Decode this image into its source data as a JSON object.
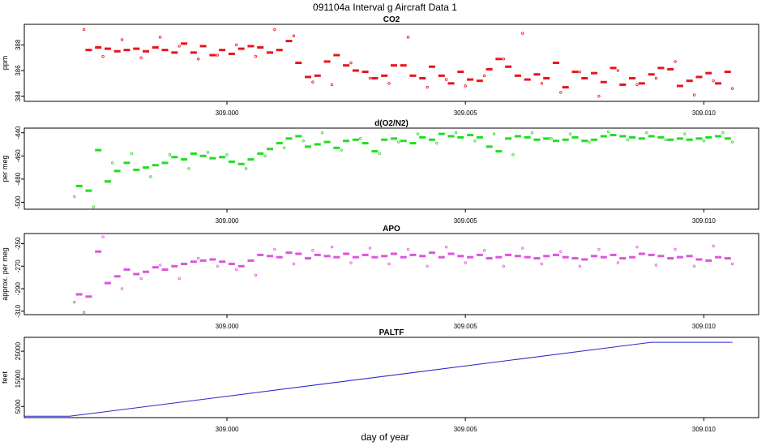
{
  "figure": {
    "title": "091104a   Interval g Aircraft Data 1",
    "xlabel": "day of year",
    "xticks": [
      309.0,
      309.005,
      309.01
    ],
    "xtick_labels": [
      "309.000",
      "309.005",
      "309.010"
    ],
    "xlim": [
      308.99575,
      309.01115
    ]
  },
  "chart_data": [
    {
      "type": "scatter",
      "title": "CO2",
      "ylabel": "ppm",
      "ylim": [
        383.6,
        389.6
      ],
      "yticks": [
        384,
        386,
        388
      ],
      "ytick_labels": [
        "384",
        "386",
        "388"
      ],
      "color": "#e8141c",
      "series": [
        {
          "name": "",
          "marker": "segment",
          "x": [
            308.9971,
            308.9973,
            308.9975,
            308.9977,
            308.9979,
            308.9981,
            308.9983,
            308.9985,
            308.9987,
            308.9989,
            308.9991,
            308.9993,
            308.9995,
            308.9997,
            308.9999,
            309.0001,
            309.0003,
            309.0005,
            309.0007,
            309.0009,
            309.0011,
            309.0013,
            309.0015,
            309.0017,
            309.0019,
            309.0021,
            309.0023,
            309.0025,
            309.0027,
            309.0029,
            309.0031,
            309.0033,
            309.0035,
            309.0037,
            309.0039,
            309.0041,
            309.0043,
            309.0045,
            309.0047,
            309.0049,
            309.0051,
            309.0053,
            309.0055,
            309.0057,
            309.0059,
            309.0061,
            309.0063,
            309.0065,
            309.0067,
            309.0069,
            309.0071,
            309.0073,
            309.0075,
            309.0077,
            309.0079,
            309.0081,
            309.0083,
            309.0085,
            309.0087,
            309.0089,
            309.0091,
            309.0093,
            309.0095,
            309.0097,
            309.0099,
            309.0101,
            309.0103,
            309.0105
          ],
          "y": [
            387.6,
            387.8,
            387.7,
            387.5,
            387.6,
            387.7,
            387.5,
            387.8,
            387.6,
            387.4,
            388.1,
            387.4,
            387.9,
            387.2,
            387.6,
            387.3,
            387.7,
            387.9,
            387.8,
            387.4,
            387.6,
            388.3,
            386.6,
            385.5,
            385.6,
            386.7,
            387.2,
            386.4,
            386.0,
            385.9,
            385.4,
            385.6,
            386.4,
            386.4,
            385.6,
            385.4,
            386.3,
            385.6,
            385.0,
            385.9,
            385.3,
            385.2,
            386.1,
            386.9,
            386.3,
            385.6,
            385.3,
            385.7,
            385.4,
            386.6,
            384.7,
            385.9,
            385.4,
            385.8,
            385.1,
            386.2,
            384.9,
            385.4,
            385.0,
            385.7,
            386.2,
            386.1,
            384.8,
            385.2,
            385.5,
            385.8,
            385.0,
            385.9
          ]
        },
        {
          "name": "",
          "marker": "point",
          "x": [
            308.997,
            308.9974,
            308.9978,
            308.9982,
            308.9986,
            308.999,
            308.9994,
            308.9998,
            309.0002,
            309.0006,
            309.001,
            309.0014,
            309.0018,
            309.0022,
            309.0026,
            309.003,
            309.0034,
            309.0038,
            309.0042,
            309.0046,
            309.005,
            309.0054,
            309.0058,
            309.0062,
            309.0066,
            309.007,
            309.0074,
            309.0078,
            309.0082,
            309.0086,
            309.009,
            309.0094,
            309.0098,
            309.0102,
            309.0106
          ],
          "y": [
            389.2,
            387.1,
            388.4,
            387.0,
            388.6,
            387.9,
            386.9,
            387.2,
            388.0,
            387.1,
            389.2,
            388.7,
            385.1,
            384.9,
            386.6,
            385.4,
            385.0,
            388.6,
            384.7,
            385.3,
            384.8,
            385.6,
            386.9,
            388.9,
            385.0,
            384.3,
            385.9,
            384.0,
            386.0,
            384.9,
            385.4,
            386.7,
            384.1,
            385.2,
            384.6
          ]
        }
      ]
    },
    {
      "type": "scatter",
      "title": "d(O2/N2)",
      "ylabel": "per meg",
      "ylim": [
        -506,
        -436
      ],
      "yticks": [
        -440,
        -460,
        -480,
        -500
      ],
      "ytick_labels": [
        "-440",
        "-460",
        "-480",
        "-500"
      ],
      "color": "#22dd22",
      "series": [
        {
          "name": "",
          "marker": "segment",
          "x": [
            308.9969,
            308.9971,
            308.9973,
            308.9975,
            308.9977,
            308.9979,
            308.9981,
            308.9983,
            308.9985,
            308.9987,
            308.9989,
            308.9991,
            308.9993,
            308.9995,
            308.9997,
            308.9999,
            309.0001,
            309.0003,
            309.0005,
            309.0007,
            309.0009,
            309.0011,
            309.0013,
            309.0015,
            309.0017,
            309.0019,
            309.0021,
            309.0023,
            309.0025,
            309.0027,
            309.0029,
            309.0031,
            309.0033,
            309.0035,
            309.0037,
            309.0039,
            309.0041,
            309.0043,
            309.0045,
            309.0047,
            309.0049,
            309.0051,
            309.0053,
            309.0055,
            309.0057,
            309.0059,
            309.0061,
            309.0063,
            309.0065,
            309.0067,
            309.0069,
            309.0071,
            309.0073,
            309.0075,
            309.0077,
            309.0079,
            309.0081,
            309.0083,
            309.0085,
            309.0087,
            309.0089,
            309.0091,
            309.0093,
            309.0095,
            309.0097,
            309.0099,
            309.0101,
            309.0103,
            309.0105
          ],
          "y": [
            -486,
            -490,
            -455,
            -482,
            -473,
            -466,
            -472,
            -470,
            -468,
            -466,
            -461,
            -463,
            -458,
            -460,
            -462,
            -461,
            -465,
            -467,
            -463,
            -458,
            -454,
            -449,
            -445,
            -443,
            -452,
            -450,
            -448,
            -453,
            -447,
            -446,
            -449,
            -456,
            -446,
            -445,
            -447,
            -449,
            -444,
            -446,
            -441,
            -443,
            -444,
            -442,
            -444,
            -452,
            -456,
            -445,
            -443,
            -444,
            -446,
            -445,
            -447,
            -446,
            -444,
            -447,
            -446,
            -443,
            -442,
            -443,
            -444,
            -445,
            -443,
            -444,
            -446,
            -445,
            -446,
            -445,
            -444,
            -443,
            -445
          ]
        },
        {
          "name": "",
          "marker": "point",
          "x": [
            308.9968,
            308.9972,
            308.9976,
            308.998,
            308.9984,
            308.9988,
            308.9992,
            308.9996,
            309.0,
            309.0004,
            309.0008,
            309.0012,
            309.0016,
            309.002,
            309.0024,
            309.0028,
            309.0032,
            309.0036,
            309.004,
            309.0044,
            309.0048,
            309.0052,
            309.0056,
            309.006,
            309.0064,
            309.0068,
            309.0072,
            309.0076,
            309.008,
            309.0084,
            309.0088,
            309.0092,
            309.0096,
            309.01,
            309.0104,
            309.0106
          ],
          "y": [
            -495,
            -504,
            -466,
            -458,
            -478,
            -459,
            -471,
            -457,
            -459,
            -471,
            -460,
            -453,
            -447,
            -440,
            -455,
            -445,
            -458,
            -448,
            -441,
            -449,
            -440,
            -447,
            -441,
            -459,
            -440,
            -445,
            -441,
            -448,
            -439,
            -446,
            -440,
            -446,
            -441,
            -447,
            -440,
            -448
          ]
        }
      ]
    },
    {
      "type": "scatter",
      "title": "APO",
      "ylabel": "approx. per meg",
      "ylim": [
        -313,
        -241
      ],
      "yticks": [
        -250,
        -270,
        -290,
        -310
      ],
      "ytick_labels": [
        "-250",
        "-270",
        "-290",
        "-310"
      ],
      "color": "#dd55dd",
      "series": [
        {
          "name": "",
          "marker": "segment",
          "x": [
            308.9969,
            308.9971,
            308.9973,
            308.9975,
            308.9977,
            308.9979,
            308.9981,
            308.9983,
            308.9985,
            308.9987,
            308.9989,
            308.9991,
            308.9993,
            308.9995,
            308.9997,
            308.9999,
            309.0001,
            309.0003,
            309.0005,
            309.0007,
            309.0009,
            309.0011,
            309.0013,
            309.0015,
            309.0017,
            309.0019,
            309.0021,
            309.0023,
            309.0025,
            309.0027,
            309.0029,
            309.0031,
            309.0033,
            309.0035,
            309.0037,
            309.0039,
            309.0041,
            309.0043,
            309.0045,
            309.0047,
            309.0049,
            309.0051,
            309.0053,
            309.0055,
            309.0057,
            309.0059,
            309.0061,
            309.0063,
            309.0065,
            309.0067,
            309.0069,
            309.0071,
            309.0073,
            309.0075,
            309.0077,
            309.0079,
            309.0081,
            309.0083,
            309.0085,
            309.0087,
            309.0089,
            309.0091,
            309.0093,
            309.0095,
            309.0097,
            309.0099,
            309.0101,
            309.0103,
            309.0105
          ],
          "y": [
            -295,
            -297,
            -257,
            -285,
            -279,
            -273,
            -277,
            -275,
            -271,
            -273,
            -270,
            -268,
            -266,
            -265,
            -264,
            -266,
            -268,
            -270,
            -265,
            -260,
            -261,
            -262,
            -258,
            -259,
            -263,
            -260,
            -261,
            -262,
            -259,
            -262,
            -260,
            -262,
            -261,
            -259,
            -262,
            -260,
            -261,
            -258,
            -262,
            -259,
            -261,
            -262,
            -260,
            -263,
            -262,
            -260,
            -261,
            -262,
            -263,
            -261,
            -260,
            -262,
            -263,
            -264,
            -261,
            -262,
            -260,
            -263,
            -262,
            -259,
            -260,
            -261,
            -263,
            -262,
            -261,
            -264,
            -265,
            -262,
            -263
          ]
        },
        {
          "name": "",
          "marker": "point",
          "x": [
            308.9968,
            308.997,
            308.9974,
            308.9978,
            308.9982,
            308.9986,
            308.999,
            308.9994,
            308.9998,
            309.0002,
            309.0006,
            309.001,
            309.0014,
            309.0018,
            309.0022,
            309.0026,
            309.003,
            309.0034,
            309.0038,
            309.0042,
            309.0046,
            309.005,
            309.0054,
            309.0058,
            309.0062,
            309.0066,
            309.007,
            309.0074,
            309.0078,
            309.0082,
            309.0086,
            309.009,
            309.0094,
            309.0098,
            309.0102,
            309.0106
          ],
          "y": [
            -302,
            -311,
            -244,
            -290,
            -281,
            -269,
            -281,
            -263,
            -270,
            -273,
            -278,
            -255,
            -268,
            -256,
            -253,
            -267,
            -254,
            -268,
            -255,
            -270,
            -253,
            -267,
            -256,
            -270,
            -254,
            -268,
            -257,
            -270,
            -255,
            -267,
            -253,
            -269,
            -255,
            -270,
            -252,
            -268
          ]
        }
      ]
    },
    {
      "type": "line",
      "title": "PALTF",
      "ylabel": "feet",
      "ylim": [
        1000,
        30000
      ],
      "yticks": [
        5000,
        15000,
        25000
      ],
      "ytick_labels": [
        "5000",
        "15000",
        "25000"
      ],
      "color": "#2a2acc",
      "series": [
        {
          "name": "",
          "x": [
            308.99575,
            308.9967,
            309.0089,
            309.0106
          ],
          "y": [
            1500,
            1500,
            28200,
            28200
          ]
        }
      ]
    }
  ]
}
